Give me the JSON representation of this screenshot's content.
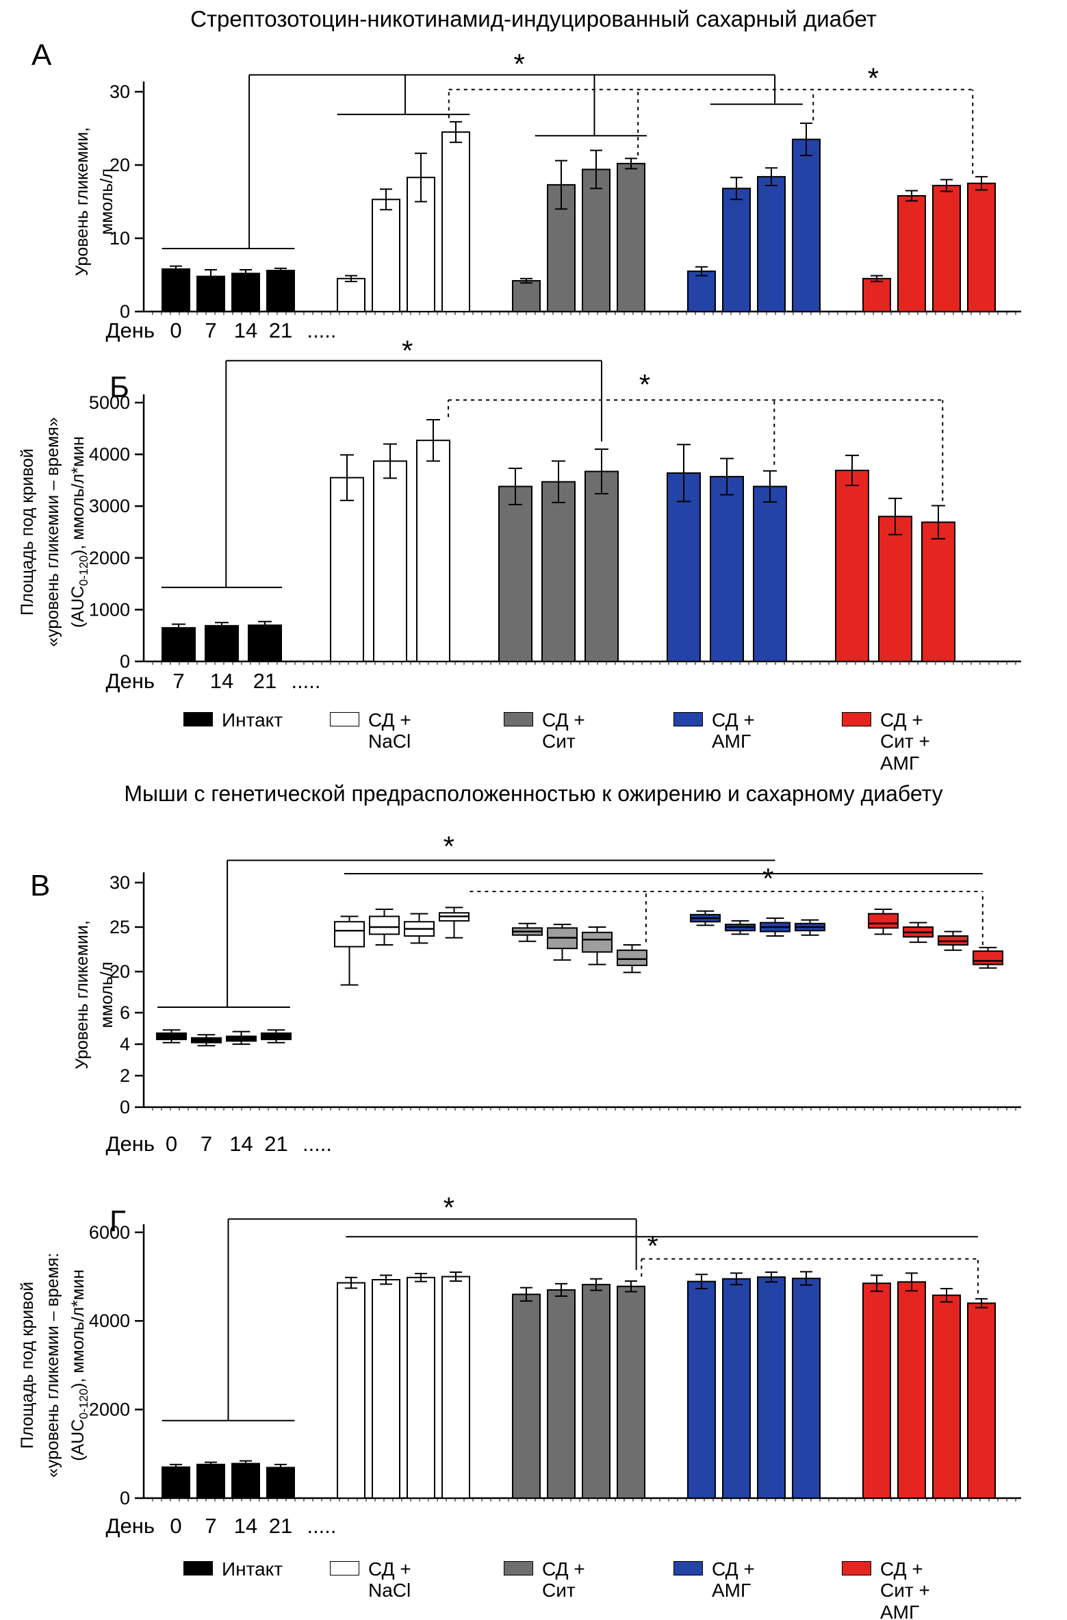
{
  "page": {
    "title_top": "Стрептозотоцин-никотинамид-индуцированный сахарный диабет",
    "title_bottom": "Мыши с генетической предрасположенностью к ожирению и сахарному диабету"
  },
  "colors": {
    "black": "#000000",
    "white": "#ffffff",
    "gray": "#6e6e6e",
    "gray_box": "#9e9e9e",
    "blue": "#2343a7",
    "red": "#e52520"
  },
  "legend": {
    "items": [
      {
        "label": "Интакт",
        "lines": [
          "Интакт"
        ],
        "color": "#000000"
      },
      {
        "label": "СД + NaCl",
        "lines": [
          "СД +",
          "NaCl"
        ],
        "color": "#ffffff"
      },
      {
        "label": "СД + Сит",
        "lines": [
          "СД +",
          "Сит"
        ],
        "color": "#6e6e6e"
      },
      {
        "label": "СД + АМГ",
        "lines": [
          "СД +",
          "АМГ"
        ],
        "color": "#2343a7"
      },
      {
        "label": "СД + Сит + АМГ",
        "lines": [
          "СД +",
          "Сит +",
          "АМГ"
        ],
        "color": "#e52520"
      }
    ]
  },
  "chart_data": [
    {
      "id": "A",
      "panel_label": "А",
      "type": "bar",
      "ylabel_lines": [
        "Уровень гликемии,",
        "ммоль/л"
      ],
      "x_axis_label": {
        "prefix": "День",
        "ticks": [
          "0",
          "7",
          "14",
          "21"
        ],
        "suffix": "....."
      },
      "ylim": [
        0,
        30
      ],
      "yticks": [
        0,
        10,
        20,
        30
      ],
      "groups": [
        {
          "name": "Интакт",
          "color": "#000000",
          "values": [
            5.8,
            4.8,
            5.2,
            5.6
          ],
          "errors": [
            0.4,
            0.9,
            0.5,
            0.3
          ]
        },
        {
          "name": "СД + NaCl",
          "color": "#ffffff",
          "values": [
            4.5,
            15.3,
            18.3,
            24.5
          ],
          "errors": [
            0.4,
            1.4,
            3.3,
            1.4
          ]
        },
        {
          "name": "СД + Сит",
          "color": "#6e6e6e",
          "values": [
            4.2,
            17.3,
            19.4,
            20.2
          ],
          "errors": [
            0.3,
            3.3,
            2.6,
            0.7
          ]
        },
        {
          "name": "СД + АМГ",
          "color": "#2343a7",
          "values": [
            5.5,
            16.8,
            18.4,
            23.5
          ],
          "errors": [
            0.6,
            1.5,
            1.2,
            2.2
          ]
        },
        {
          "name": "СД + Сит + АМГ",
          "color": "#e52520",
          "values": [
            4.5,
            15.8,
            17.2,
            17.5
          ],
          "errors": [
            0.4,
            0.7,
            0.8,
            0.9
          ]
        }
      ],
      "annotations": [
        {
          "k": "h",
          "y": 8.6,
          "a": [
            0,
            -0.4
          ],
          "b": [
            0,
            3.4
          ]
        },
        {
          "k": "h",
          "y": 26.9,
          "a": [
            1,
            -0.4
          ],
          "b": [
            1,
            3.4
          ]
        },
        {
          "k": "h",
          "y": 24.0,
          "a": [
            2,
            0.25
          ],
          "b": [
            2,
            3.45
          ]
        },
        {
          "k": "h",
          "y": 28.3,
          "a": [
            3,
            0.25
          ],
          "b": [
            3,
            2.9
          ]
        },
        {
          "k": "v",
          "x": [
            0,
            2.1
          ],
          "y1": 8.6,
          "y2": 32.3
        },
        {
          "k": "v",
          "x": [
            1,
            1.55
          ],
          "y1": 26.9,
          "y2": 32.3
        },
        {
          "k": "v",
          "x": [
            2,
            1.95
          ],
          "y1": 24.0,
          "y2": 32.3
        },
        {
          "k": "v",
          "x": [
            3,
            2.1
          ],
          "y1": 28.3,
          "y2": 32.3
        },
        {
          "k": "h",
          "y": 32.3,
          "a": [
            0,
            2.1
          ],
          "b": [
            3,
            2.1
          ]
        },
        {
          "k": "star",
          "x": [
            2,
            -0.2
          ],
          "y": 34.3
        },
        {
          "k": "h",
          "y": 30.3,
          "a": [
            1,
            2.8
          ],
          "b": [
            4,
            2.75
          ],
          "dash": 1
        },
        {
          "k": "v",
          "x": [
            1,
            2.8
          ],
          "y1": 26.4,
          "y2": 30.3,
          "dash": 1
        },
        {
          "k": "v",
          "x": [
            2,
            3.2
          ],
          "y1": 21.3,
          "y2": 30.3,
          "dash": 1
        },
        {
          "k": "v",
          "x": [
            3,
            3.2
          ],
          "y1": 26.1,
          "y2": 30.3,
          "dash": 1
        },
        {
          "k": "v",
          "x": [
            4,
            2.75
          ],
          "y1": 18.8,
          "y2": 30.3,
          "dash": 1
        },
        {
          "k": "star",
          "x": [
            4,
            -0.1
          ],
          "y": 32.4
        }
      ]
    },
    {
      "id": "B",
      "panel_label": "Б",
      "type": "bar",
      "ylabel_lines": [
        "Площадь под кривой",
        "«уровень гликемии – время»",
        "(AUC0-120), ммоль/л*мин"
      ],
      "x_axis_label": {
        "prefix": "День",
        "ticks": [
          "7",
          "14",
          "21"
        ],
        "suffix": "....."
      },
      "ylim": [
        0,
        5000
      ],
      "yticks": [
        0,
        1000,
        2000,
        3000,
        4000,
        5000
      ],
      "groups": [
        {
          "name": "Интакт",
          "color": "#000000",
          "values": [
            650,
            690,
            700
          ],
          "errors": [
            70,
            60,
            70
          ]
        },
        {
          "name": "СД + NaCl",
          "color": "#ffffff",
          "values": [
            3550,
            3870,
            4270
          ],
          "errors": [
            440,
            330,
            400
          ]
        },
        {
          "name": "СД + Сит",
          "color": "#6e6e6e",
          "values": [
            3380,
            3470,
            3670
          ],
          "errors": [
            350,
            400,
            430
          ]
        },
        {
          "name": "СД + АМГ",
          "color": "#2343a7",
          "values": [
            3640,
            3570,
            3380
          ],
          "errors": [
            550,
            350,
            300
          ]
        },
        {
          "name": "СД + Сит + АМГ",
          "color": "#e52520",
          "values": [
            3690,
            2800,
            2690
          ],
          "errors": [
            290,
            350,
            320
          ]
        }
      ],
      "annotations": [
        {
          "k": "h",
          "y": 1430,
          "a": [
            0,
            -0.4
          ],
          "b": [
            0,
            2.4
          ]
        },
        {
          "k": "v",
          "x": [
            0,
            1.1
          ],
          "y1": 1430,
          "y2": 5810
        },
        {
          "k": "h",
          "y": 5810,
          "a": [
            0,
            1.1
          ],
          "b": [
            2,
            2.0
          ]
        },
        {
          "k": "v",
          "x": [
            2,
            2.0
          ],
          "y1": 4250,
          "y2": 5810
        },
        {
          "k": "star",
          "x": [
            1,
            1.4
          ],
          "y": 6080
        },
        {
          "k": "h",
          "y": 5050,
          "a": [
            1,
            2.35
          ],
          "b": [
            4,
            2.1
          ],
          "dash": 1
        },
        {
          "k": "v",
          "x": [
            1,
            2.35
          ],
          "y1": 4720,
          "y2": 5050,
          "dash": 1
        },
        {
          "k": "v",
          "x": [
            3,
            2.1
          ],
          "y1": 3800,
          "y2": 5050,
          "dash": 1
        },
        {
          "k": "v",
          "x": [
            4,
            2.1
          ],
          "y1": 3100,
          "y2": 5050,
          "dash": 1
        },
        {
          "k": "star",
          "x": [
            2,
            3.0
          ],
          "y": 5420
        }
      ]
    },
    {
      "id": "V",
      "panel_label": "В",
      "type": "box",
      "ylabel_lines": [
        "Уровень гликемии,",
        "ммоль/л"
      ],
      "x_axis_label": {
        "prefix": "День",
        "ticks": [
          "0",
          "7",
          "14",
          "21"
        ],
        "suffix": "....."
      },
      "y_axis_break": true,
      "y_segments": [
        {
          "range": [
            20,
            30
          ],
          "ticks": [
            20,
            25,
            30
          ]
        },
        {
          "range": [
            0,
            6
          ],
          "ticks": [
            0,
            2,
            4,
            6
          ]
        }
      ],
      "yticks": [
        0,
        2,
        4,
        6,
        20,
        25,
        30
      ],
      "groups": [
        {
          "name": "Интакт",
          "color": "#000000",
          "boxes": [
            [
              4.1,
              4.3,
              4.5,
              4.7,
              4.9
            ],
            [
              3.9,
              4.1,
              4.25,
              4.4,
              4.6
            ],
            [
              4.0,
              4.2,
              4.35,
              4.5,
              4.8
            ],
            [
              4.1,
              4.3,
              4.5,
              4.7,
              4.9
            ]
          ]
        },
        {
          "name": "СД + NaCl",
          "color": "#ffffff",
          "boxes": [
            [
              18.5,
              22.8,
              24.6,
              25.6,
              26.2
            ],
            [
              23.0,
              24.2,
              25.0,
              26.2,
              27.0
            ],
            [
              23.2,
              24.0,
              24.8,
              25.6,
              26.5
            ],
            [
              23.8,
              25.7,
              26.2,
              26.6,
              27.2
            ]
          ]
        },
        {
          "name": "СД + Сит",
          "color": "#9e9e9e",
          "boxes": [
            [
              23.4,
              24.1,
              24.5,
              24.9,
              25.4
            ],
            [
              21.3,
              22.6,
              23.8,
              24.9,
              25.3
            ],
            [
              20.8,
              22.2,
              23.6,
              24.4,
              25.0
            ],
            [
              19.9,
              20.7,
              21.4,
              22.4,
              23.0
            ]
          ]
        },
        {
          "name": "СД + АМГ",
          "color": "#2343a7",
          "boxes": [
            [
              25.2,
              25.6,
              26.0,
              26.4,
              26.8
            ],
            [
              24.2,
              24.6,
              25.0,
              25.3,
              25.7
            ],
            [
              24.0,
              24.5,
              25.0,
              25.5,
              26.0
            ],
            [
              24.1,
              24.6,
              25.0,
              25.4,
              25.8
            ]
          ]
        },
        {
          "name": "СД + Сит + АМГ",
          "color": "#e52520",
          "boxes": [
            [
              24.2,
              24.9,
              25.4,
              26.5,
              27.0
            ],
            [
              23.3,
              23.9,
              24.4,
              25.0,
              25.5
            ],
            [
              22.4,
              23.0,
              23.4,
              24.0,
              24.5
            ],
            [
              20.4,
              20.8,
              21.2,
              22.3,
              22.7
            ]
          ]
        }
      ],
      "annotations": [
        {
          "k": "h",
          "y": 6.35,
          "a": [
            0,
            -0.4
          ],
          "b": [
            0,
            3.4
          ]
        },
        {
          "k": "v",
          "x": [
            0,
            1.6
          ],
          "y1": 6.35,
          "y2": 32.5
        },
        {
          "k": "h",
          "y": 32.5,
          "a": [
            0,
            1.6
          ],
          "b": [
            3,
            2.0
          ]
        },
        {
          "k": "star",
          "x": [
            1,
            2.85
          ],
          "y": 34.5
        },
        {
          "k": "h",
          "y": 31.0,
          "a": [
            1,
            -0.15
          ],
          "b": [
            4,
            2.85
          ]
        },
        {
          "k": "h",
          "y": 29.0,
          "a": [
            1,
            3.45
          ],
          "b": [
            4,
            2.85
          ],
          "dash": 1
        },
        {
          "k": "v",
          "x": [
            2,
            3.4
          ],
          "y1": 23.3,
          "y2": 29.0,
          "dash": 1
        },
        {
          "k": "v",
          "x": [
            4,
            2.85
          ],
          "y1": 23.0,
          "y2": 29.0,
          "dash": 1
        },
        {
          "k": "star",
          "x": [
            3,
            1.8
          ],
          "y": 30.9
        }
      ]
    },
    {
      "id": "G",
      "panel_label": "Г",
      "type": "bar",
      "ylabel_lines": [
        "Площадь под кривой",
        "«уровень гликемии – время:",
        "(AUC0-120), ммоль/л*мин"
      ],
      "x_axis_label": {
        "prefix": "День",
        "ticks": [
          "0",
          "7",
          "14",
          "21"
        ],
        "suffix": "....."
      },
      "ylim": [
        0,
        6000
      ],
      "yticks": [
        0,
        2000,
        4000,
        6000
      ],
      "groups": [
        {
          "name": "Интакт",
          "color": "#000000",
          "values": [
            700,
            760,
            780,
            690
          ],
          "errors": [
            60,
            50,
            60,
            70
          ]
        },
        {
          "name": "СД + NaCl",
          "color": "#ffffff",
          "values": [
            4860,
            4930,
            4980,
            5000
          ],
          "errors": [
            120,
            100,
            90,
            100
          ]
        },
        {
          "name": "СД + Сит",
          "color": "#6e6e6e",
          "values": [
            4600,
            4700,
            4820,
            4780
          ],
          "errors": [
            150,
            140,
            130,
            120
          ]
        },
        {
          "name": "СД + АМГ",
          "color": "#2343a7",
          "values": [
            4890,
            4950,
            4990,
            4960
          ],
          "errors": [
            160,
            130,
            110,
            150
          ]
        },
        {
          "name": "СД + Сит + АМГ",
          "color": "#e52520",
          "values": [
            4850,
            4880,
            4580,
            4400
          ],
          "errors": [
            180,
            200,
            150,
            100
          ]
        }
      ],
      "annotations": [
        {
          "k": "h",
          "y": 1750,
          "a": [
            0,
            -0.4
          ],
          "b": [
            0,
            3.4
          ]
        },
        {
          "k": "v",
          "x": [
            0,
            1.5
          ],
          "y1": 1750,
          "y2": 6300
        },
        {
          "k": "h",
          "y": 6300,
          "a": [
            0,
            1.5
          ],
          "b": [
            2,
            3.15
          ]
        },
        {
          "k": "v",
          "x": [
            2,
            3.15
          ],
          "y1": 5150,
          "y2": 6300
        },
        {
          "k": "star",
          "x": [
            1,
            2.8
          ],
          "y": 6650
        },
        {
          "k": "h",
          "y": 5900,
          "a": [
            1,
            -0.15
          ],
          "b": [
            4,
            2.9
          ]
        },
        {
          "k": "h",
          "y": 5400,
          "a": [
            2,
            3.3
          ],
          "b": [
            4,
            2.9
          ],
          "dash": 1
        },
        {
          "k": "v",
          "x": [
            2,
            3.3
          ],
          "y1": 5000,
          "y2": 5400,
          "dash": 1
        },
        {
          "k": "v",
          "x": [
            4,
            2.9
          ],
          "y1": 4620,
          "y2": 5400,
          "dash": 1
        },
        {
          "k": "star",
          "x": [
            2,
            3.62
          ],
          "y": 5780
        }
      ]
    }
  ]
}
